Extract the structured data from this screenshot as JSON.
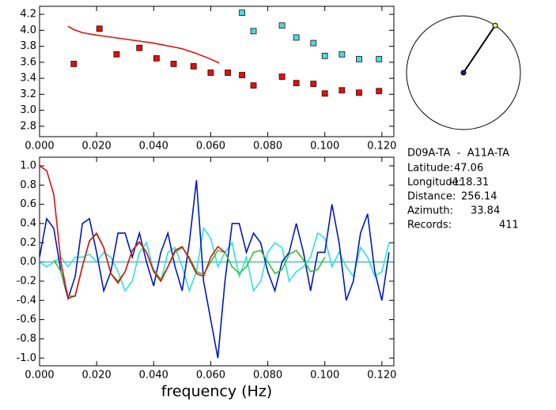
{
  "chart_data": [
    {
      "type": "scatter",
      "xlim": [
        0,
        0.1242
      ],
      "ylim": [
        2.67,
        4.3
      ],
      "xticks": [
        {
          "value": 0,
          "label": "0.000"
        },
        {
          "value": 0.02,
          "label": "0.020"
        },
        {
          "value": 0.04,
          "label": "0.040"
        },
        {
          "value": 0.06,
          "label": "0.060"
        },
        {
          "value": 0.08,
          "label": "0.080"
        },
        {
          "value": 0.1,
          "label": "0.100"
        },
        {
          "value": 0.12,
          "label": "0.120"
        }
      ],
      "yticks": [
        2.8,
        {
          "value": 3,
          "label": "3.0"
        },
        3.2,
        3.4,
        3.6,
        3.8,
        {
          "value": 4,
          "label": "4.0"
        },
        4.2
      ],
      "series": [
        {
          "type": "scatter",
          "color": "#e01010",
          "x": [
            0.012,
            0.021,
            0.027,
            0.035,
            0.041,
            0.047,
            0.054,
            0.06,
            0.066,
            0.071,
            0.075,
            0.085,
            0.09,
            0.096,
            0.1,
            0.106,
            0.112,
            0.119
          ],
          "values": [
            3.58,
            4.02,
            3.7,
            3.78,
            3.65,
            3.58,
            3.55,
            3.47,
            3.47,
            3.44,
            3.31,
            3.42,
            3.34,
            3.33,
            3.21,
            3.25,
            3.22,
            3.24
          ]
        },
        {
          "type": "scatter",
          "color": "#40e0e0",
          "x": [
            0.071,
            0.075,
            0.085,
            0.09,
            0.096,
            0.1,
            0.106,
            0.112,
            0.119
          ],
          "values": [
            4.22,
            3.99,
            4.06,
            3.91,
            3.84,
            3.68,
            3.7,
            3.64,
            3.64
          ]
        },
        {
          "type": "line",
          "color": "#e01010",
          "x": [
            0.01,
            0.012,
            0.015,
            0.02,
            0.03,
            0.04,
            0.05,
            0.055,
            0.06,
            0.063
          ],
          "values": [
            4.05,
            4.01,
            3.97,
            3.94,
            3.89,
            3.84,
            3.77,
            3.71,
            3.64,
            3.59
          ]
        }
      ]
    },
    {
      "type": "line",
      "x_label": "frequency (Hz)",
      "xlim": [
        0,
        0.1242
      ],
      "ylim": [
        -1.08,
        1.09
      ],
      "axhline": 0,
      "axhline_color": "#10a0a0",
      "xticks": [
        {
          "value": 0,
          "label": "0.000"
        },
        {
          "value": 0.02,
          "label": "0.020"
        },
        {
          "value": 0.04,
          "label": "0.040"
        },
        {
          "value": 0.06,
          "label": "0.060"
        },
        {
          "value": 0.08,
          "label": "0.080"
        },
        {
          "value": 0.1,
          "label": "0.100"
        },
        {
          "value": 0.12,
          "label": "0.120"
        }
      ],
      "yticks": [
        {
          "value": -1,
          "label": "-1.0"
        },
        -0.8,
        -0.6,
        -0.4,
        -0.2,
        {
          "value": 0,
          "label": "0.0"
        },
        0.2,
        0.4,
        0.6,
        0.8,
        {
          "value": 1,
          "label": "1.0"
        }
      ],
      "x": [
        0,
        0.0025,
        0.005,
        0.0075,
        0.01,
        0.0125,
        0.015,
        0.0175,
        0.02,
        0.0225,
        0.025,
        0.0275,
        0.03,
        0.0325,
        0.035,
        0.0375,
        0.04,
        0.0425,
        0.045,
        0.0475,
        0.05,
        0.0525,
        0.055,
        0.0575,
        0.06,
        0.0625,
        0.065,
        0.0675,
        0.07,
        0.0725,
        0.075,
        0.0775,
        0.08,
        0.0825,
        0.085,
        0.0875,
        0.09,
        0.0925,
        0.095,
        0.0975,
        0.1,
        0.1025,
        0.105,
        0.1075,
        0.11,
        0.1125,
        0.115,
        0.1175,
        0.12,
        0.1225
      ],
      "series": [
        {
          "color": "#2ee0e0",
          "values": [
            0,
            -0.05,
            0,
            0.05,
            -0.05,
            0.05,
            0.05,
            0.08,
            0,
            0.1,
            0.05,
            -0.1,
            -0.3,
            -0.2,
            0.1,
            0.2,
            -0.1,
            -0.2,
            0.1,
            0.15,
            -0.05,
            -0.3,
            -0.1,
            0.35,
            0.25,
            -0.05,
            0.1,
            0.2,
            -0.15,
            0.05,
            -0.3,
            -0.2,
            0.1,
            0.2,
            0.15,
            -0.2,
            -0.1,
            -0.05,
            0.05,
            0.3,
            0.25,
            -0.05,
            0.1,
            -0.05,
            -0.15,
            0.15,
            0.05,
            -0.15,
            -0.1,
            0.2
          ]
        },
        {
          "color": "#0018c0",
          "values": [
            0.05,
            0.45,
            0.35,
            -0.1,
            -0.38,
            -0.15,
            0.4,
            0.45,
            0.1,
            -0.3,
            -0.1,
            0.3,
            0.3,
            0.05,
            0.3,
            0,
            -0.25,
            0.1,
            0.3,
            -0.05,
            -0.3,
            0.2,
            0.85,
            -0.2,
            -0.6,
            -1,
            -0.2,
            0.4,
            0.4,
            0.1,
            0.3,
            0.2,
            -0.1,
            -0.3,
            0,
            0.1,
            0.4,
            0.1,
            -0.3,
            0.1,
            0.1,
            0.6,
            0.2,
            -0.4,
            -0.2,
            0.3,
            0.5,
            -0.1,
            -0.4,
            0.1
          ]
        },
        {
          "color": "#30c030",
          "x": [
            0.005,
            0.0075,
            0.01,
            0.0125,
            0.015,
            0.0175,
            0.02,
            0.0225,
            0.025,
            0.0275,
            0.03,
            0.0325,
            0.035,
            0.0375,
            0.04,
            0.0425,
            0.045,
            0.0475,
            0.05,
            0.0525,
            0.055,
            0.0575,
            0.06,
            0.0625,
            0.065,
            0.0675,
            0.07,
            0.0725,
            0.075,
            0.0775,
            0.08,
            0.0825,
            0.085,
            0.0875,
            0.09,
            0.0925,
            0.095,
            0.0975,
            0.1
          ],
          "values": [
            0.02,
            -0.1,
            -0.35,
            -0.36,
            -0.05,
            0.22,
            0.29,
            0.15,
            -0.12,
            -0.2,
            -0.1,
            0.12,
            0.2,
            0.1,
            -0.08,
            -0.18,
            -0.05,
            0.1,
            0.15,
            0.05,
            -0.1,
            -0.13,
            0,
            0.12,
            0.1,
            -0.05,
            -0.12,
            -0.05,
            0.1,
            0.12,
            0,
            -0.12,
            -0.08,
            0.08,
            0.12,
            0.02,
            -0.1,
            -0.08,
            0.05
          ]
        },
        {
          "color": "#e01010",
          "x": [
            0,
            0.0025,
            0.005,
            0.0075,
            0.01,
            0.0125,
            0.015,
            0.0175,
            0.02,
            0.0225,
            0.025,
            0.0275,
            0.03,
            0.0325,
            0.035,
            0.0375,
            0.04,
            0.0425,
            0.045,
            0.0475,
            0.05,
            0.0525,
            0.055,
            0.0575,
            0.06,
            0.0625,
            0.065
          ],
          "values": [
            1,
            0.95,
            0.7,
            0,
            -0.38,
            -0.35,
            -0.05,
            0.22,
            0.3,
            0.15,
            -0.12,
            -0.22,
            -0.1,
            0.12,
            0.21,
            0.1,
            -0.1,
            -0.2,
            -0.05,
            0.12,
            0.16,
            0.03,
            -0.12,
            -0.15,
            0.05,
            0.16,
            0.1
          ]
        }
      ]
    }
  ],
  "info": {
    "title": "D09A-TA  -  A11A-TA",
    "rows": [
      {
        "label": "Latitude:",
        "value": 47.06
      },
      {
        "label": "Longitude:",
        "value": -118.31
      },
      {
        "label": "Distance:",
        "value": 256.14
      },
      {
        "label": "Azimuth:",
        "value": 33.84
      },
      {
        "label": "Records:",
        "value": 411
      }
    ],
    "azimuth": 33.84
  }
}
